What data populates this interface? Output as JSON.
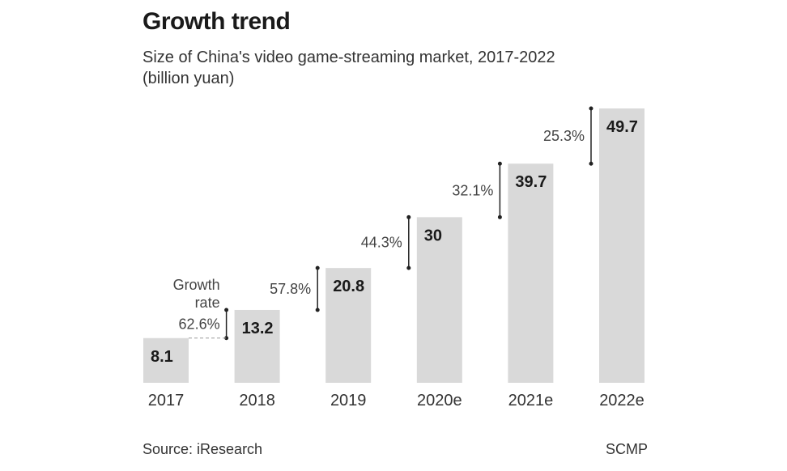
{
  "chart_data": {
    "type": "bar",
    "title": "Growth trend",
    "subtitle_line1": "Size of China's video game-streaming market, 2017-2022",
    "subtitle_line2": "(billion yuan)",
    "categories": [
      "2017",
      "2018",
      "2019",
      "2020e",
      "2021e",
      "2022e"
    ],
    "values": [
      8.1,
      13.2,
      20.8,
      30,
      39.7,
      49.7
    ],
    "value_labels": [
      "8.1",
      "13.2",
      "20.8",
      "30",
      "39.7",
      "49.7"
    ],
    "growth_rates": [
      "",
      "62.6%",
      "57.8%",
      "44.3%",
      "32.1%",
      "25.3%"
    ],
    "growth_note_line1": "Growth",
    "growth_note_line2": "rate",
    "ylim": [
      0,
      49.7
    ],
    "grid": false,
    "colors": {
      "bar": "#d9d9d9",
      "text": "#1a1a1a"
    }
  },
  "footer": {
    "source": "Source: iResearch",
    "credit": "SCMP"
  }
}
